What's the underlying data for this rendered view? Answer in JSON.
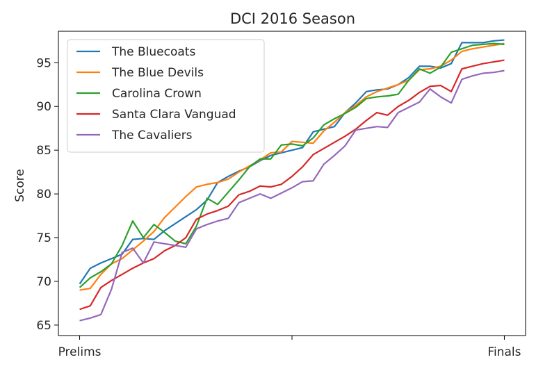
{
  "chart_data": {
    "type": "line",
    "title": "DCI 2016 Season",
    "xlabel": "",
    "ylabel": "Score",
    "ylim": [
      63.8,
      98.6
    ],
    "yticks": [
      65,
      70,
      75,
      80,
      85,
      90,
      95
    ],
    "xticks": [
      {
        "pos": 0,
        "label": "Prelims"
      },
      {
        "pos": 20,
        "label": ""
      },
      {
        "pos": 40,
        "label": "Finals"
      }
    ],
    "grid": false,
    "legend": "top-left",
    "series": [
      {
        "name": "The Bluecoats",
        "color": "#1f77b4",
        "values": [
          69.7,
          71.5,
          72.1,
          72.6,
          73.1,
          74.8,
          74.9,
          74.8,
          75.8,
          76.6,
          77.4,
          78.2,
          79.3,
          81.3,
          82.0,
          82.6,
          83.1,
          83.8,
          84.4,
          84.7,
          85.0,
          85.3,
          87.1,
          87.4,
          87.7,
          89.3,
          90.4,
          91.7,
          91.9,
          92.0,
          92.5,
          93.3,
          94.6,
          94.6,
          94.4,
          94.9,
          97.3,
          97.3,
          97.3,
          97.5,
          97.6
        ]
      },
      {
        "name": "The Blue Devils",
        "color": "#ff7f0e",
        "values": [
          69.0,
          69.2,
          70.8,
          72.0,
          72.6,
          73.6,
          74.6,
          75.7,
          77.3,
          78.5,
          79.7,
          80.8,
          81.1,
          81.3,
          81.7,
          82.5,
          83.2,
          83.9,
          84.7,
          84.8,
          86.0,
          85.9,
          85.8,
          87.2,
          88.2,
          89.3,
          90.1,
          91.1,
          91.7,
          92.1,
          92.5,
          93.0,
          94.2,
          94.3,
          94.6,
          95.3,
          96.3,
          96.6,
          96.8,
          97.0,
          97.2
        ]
      },
      {
        "name": "Carolina Crown",
        "color": "#2ca02c",
        "values": [
          69.3,
          70.4,
          71.1,
          72.0,
          74.1,
          76.9,
          75.0,
          76.5,
          75.6,
          74.6,
          74.3,
          76.3,
          79.5,
          78.8,
          80.2,
          81.6,
          83.1,
          84.0,
          84.0,
          85.6,
          85.7,
          85.5,
          86.4,
          87.9,
          88.6,
          89.2,
          89.9,
          90.9,
          91.1,
          91.2,
          91.4,
          93.0,
          94.3,
          93.8,
          94.5,
          96.2,
          96.6,
          97.0,
          97.1,
          97.2,
          97.1
        ]
      },
      {
        "name": "Santa Clara Vanguad",
        "color": "#d62728",
        "values": [
          66.8,
          67.2,
          69.3,
          70.1,
          70.8,
          71.5,
          72.1,
          72.6,
          73.5,
          74.1,
          75.0,
          77.1,
          77.7,
          78.1,
          78.6,
          79.9,
          80.3,
          80.9,
          80.8,
          81.1,
          82.0,
          83.1,
          84.5,
          85.2,
          85.9,
          86.6,
          87.4,
          88.4,
          89.3,
          89.0,
          90.0,
          90.7,
          91.6,
          92.3,
          92.4,
          91.7,
          94.3,
          94.6,
          94.9,
          95.1,
          95.3
        ]
      },
      {
        "name": "The Cavaliers",
        "color": "#9467bd",
        "values": [
          65.5,
          65.8,
          66.2,
          69.1,
          73.3,
          73.8,
          72.1,
          74.5,
          74.3,
          74.1,
          73.9,
          76.0,
          76.5,
          76.9,
          77.2,
          79.0,
          79.5,
          80.0,
          79.5,
          80.1,
          80.7,
          81.4,
          81.5,
          83.4,
          84.4,
          85.5,
          87.3,
          87.5,
          87.7,
          87.6,
          89.3,
          89.9,
          90.5,
          92.0,
          91.1,
          90.4,
          93.1,
          93.5,
          93.8,
          93.9,
          94.1
        ]
      }
    ]
  }
}
